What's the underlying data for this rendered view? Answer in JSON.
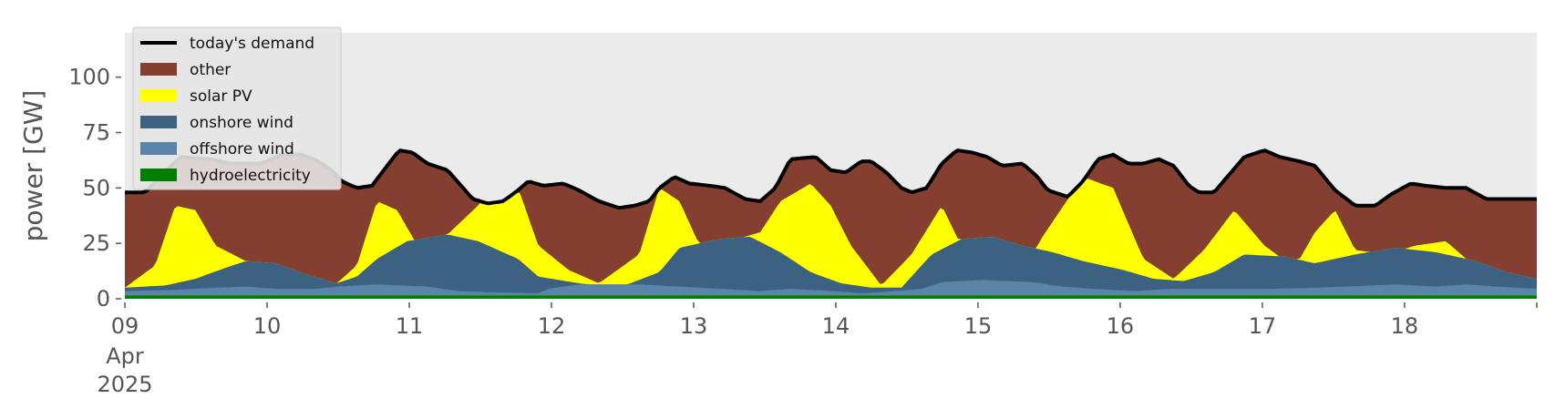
{
  "chart_data": {
    "type": "area",
    "title": "",
    "ylabel": "power [GW]",
    "xlabel": "",
    "ylim": [
      0,
      120
    ],
    "xlim": [
      "2025-04-09T00:00",
      "2025-04-18T23:00"
    ],
    "y_ticks": [
      0,
      25,
      50,
      75,
      100
    ],
    "x_ticks": [
      {
        "label": "09",
        "sub": [
          "Apr",
          "2025"
        ]
      },
      {
        "label": "10"
      },
      {
        "label": "11"
      },
      {
        "label": "12"
      },
      {
        "label": "13"
      },
      {
        "label": "14"
      },
      {
        "label": "15"
      },
      {
        "label": "16"
      },
      {
        "label": "17"
      },
      {
        "label": "18"
      }
    ],
    "x_unit": "days",
    "legend_position": "top-left",
    "grid": false,
    "background": "#ebebeb",
    "demand": {
      "name": "today's demand",
      "color": "#000000",
      "points": [
        [
          0.0,
          48
        ],
        [
          0.2,
          48
        ],
        [
          0.55,
          64
        ],
        [
          0.85,
          63
        ],
        [
          1.05,
          61
        ],
        [
          1.35,
          61
        ],
        [
          1.55,
          65
        ],
        [
          1.75,
          65
        ],
        [
          1.88,
          63
        ],
        [
          2.05,
          58
        ],
        [
          2.15,
          53
        ],
        [
          2.3,
          50
        ],
        [
          2.45,
          51
        ],
        [
          2.6,
          60
        ],
        [
          2.72,
          67
        ],
        [
          2.85,
          66
        ],
        [
          3.0,
          61
        ],
        [
          3.2,
          58
        ],
        [
          3.45,
          45
        ],
        [
          3.6,
          43
        ],
        [
          3.75,
          44
        ],
        [
          3.9,
          49
        ],
        [
          4.0,
          53
        ],
        [
          4.15,
          51
        ],
        [
          4.35,
          52
        ],
        [
          4.5,
          49
        ],
        [
          4.7,
          44
        ],
        [
          4.9,
          41
        ],
        [
          5.05,
          42
        ],
        [
          5.2,
          44
        ],
        [
          5.3,
          50
        ],
        [
          5.45,
          55
        ],
        [
          5.6,
          52
        ],
        [
          5.8,
          51
        ],
        [
          5.95,
          50
        ],
        [
          6.15,
          45
        ],
        [
          6.3,
          44
        ],
        [
          6.45,
          50
        ],
        [
          6.6,
          63
        ],
        [
          6.85,
          64
        ],
        [
          7.0,
          58
        ],
        [
          7.15,
          57
        ],
        [
          7.3,
          62
        ],
        [
          7.4,
          62
        ],
        [
          7.55,
          57
        ],
        [
          7.7,
          50
        ],
        [
          7.8,
          48
        ],
        [
          7.95,
          50
        ],
        [
          8.1,
          61
        ],
        [
          8.25,
          67
        ],
        [
          8.4,
          66
        ],
        [
          8.55,
          64
        ],
        [
          8.7,
          60
        ],
        [
          8.9,
          61
        ],
        [
          9.05,
          55
        ],
        [
          9.15,
          49
        ],
        [
          9.35,
          46
        ],
        [
          9.5,
          53
        ],
        [
          9.65,
          63
        ],
        [
          9.8,
          65
        ],
        [
          9.95,
          61
        ],
        [
          10.1,
          61
        ],
        [
          10.25,
          63
        ],
        [
          10.4,
          60
        ],
        [
          10.55,
          51
        ],
        [
          10.65,
          48
        ],
        [
          10.8,
          48
        ],
        [
          10.95,
          56
        ],
        [
          11.1,
          64
        ],
        [
          11.3,
          67
        ],
        [
          11.45,
          64
        ],
        [
          11.65,
          62
        ],
        [
          11.8,
          60
        ],
        [
          12.0,
          49
        ],
        [
          12.2,
          42
        ],
        [
          12.4,
          42
        ],
        [
          12.55,
          47
        ],
        [
          12.75,
          52
        ],
        [
          12.9,
          51
        ],
        [
          13.1,
          50
        ],
        [
          13.3,
          50
        ],
        [
          13.5,
          45
        ],
        [
          14.0,
          45
        ]
      ]
    },
    "series": [
      {
        "name": "hydroelectricity",
        "color": "#008000",
        "points": [
          [
            0,
            1.5
          ],
          [
            14,
            1.5
          ]
        ]
      },
      {
        "name": "offshore wind",
        "color": "#5b84a8",
        "points": [
          [
            0,
            2
          ],
          [
            0.5,
            2.5
          ],
          [
            0.9,
            3.5
          ],
          [
            1.2,
            4
          ],
          [
            1.5,
            3
          ],
          [
            1.9,
            3
          ],
          [
            2.1,
            4
          ],
          [
            2.5,
            5
          ],
          [
            3.0,
            4
          ],
          [
            3.3,
            2
          ],
          [
            3.6,
            1.5
          ],
          [
            4.1,
            1
          ],
          [
            4.2,
            3
          ],
          [
            4.5,
            5
          ],
          [
            5.1,
            5
          ],
          [
            5.5,
            4
          ],
          [
            5.9,
            3
          ],
          [
            6.3,
            2
          ],
          [
            6.6,
            3
          ],
          [
            7.0,
            2
          ],
          [
            7.3,
            1
          ],
          [
            7.5,
            1.5
          ],
          [
            7.9,
            3
          ],
          [
            8.1,
            6
          ],
          [
            8.5,
            7
          ],
          [
            9.0,
            6
          ],
          [
            9.3,
            4
          ],
          [
            9.6,
            3
          ],
          [
            10.0,
            2
          ],
          [
            10.4,
            3
          ],
          [
            11.0,
            3
          ],
          [
            11.4,
            3
          ],
          [
            11.8,
            3.5
          ],
          [
            12.1,
            4
          ],
          [
            12.6,
            5
          ],
          [
            13.0,
            4
          ],
          [
            13.3,
            5
          ],
          [
            13.6,
            4
          ],
          [
            14,
            3
          ]
        ]
      },
      {
        "name": "onshore wind",
        "color": "#3d6180",
        "points": [
          [
            0,
            5
          ],
          [
            0.4,
            6
          ],
          [
            0.7,
            9
          ],
          [
            1.0,
            14
          ],
          [
            1.2,
            17
          ],
          [
            1.5,
            16
          ],
          [
            1.8,
            11
          ],
          [
            2.1,
            7
          ],
          [
            2.3,
            10
          ],
          [
            2.5,
            18
          ],
          [
            2.8,
            26
          ],
          [
            3.2,
            29
          ],
          [
            3.5,
            26
          ],
          [
            3.9,
            18
          ],
          [
            4.1,
            10
          ],
          [
            4.5,
            7
          ],
          [
            4.9,
            5
          ],
          [
            5.3,
            12
          ],
          [
            5.5,
            23
          ],
          [
            5.9,
            27
          ],
          [
            6.2,
            28
          ],
          [
            6.5,
            21
          ],
          [
            6.8,
            12
          ],
          [
            7.1,
            7
          ],
          [
            7.4,
            5
          ],
          [
            7.7,
            5
          ],
          [
            8.0,
            20
          ],
          [
            8.3,
            27
          ],
          [
            8.6,
            28
          ],
          [
            8.9,
            24
          ],
          [
            9.2,
            21
          ],
          [
            9.5,
            17
          ],
          [
            9.9,
            13
          ],
          [
            10.2,
            9
          ],
          [
            10.5,
            8
          ],
          [
            10.8,
            12
          ],
          [
            11.1,
            20
          ],
          [
            11.5,
            19
          ],
          [
            11.8,
            16
          ],
          [
            12.2,
            20
          ],
          [
            12.6,
            23
          ],
          [
            13.0,
            21
          ],
          [
            13.4,
            17
          ],
          [
            13.7,
            12
          ],
          [
            14,
            9
          ]
        ]
      },
      {
        "name": "solar PV",
        "color": "#ffff00",
        "points": [
          [
            0,
            5
          ],
          [
            0.3,
            15
          ],
          [
            0.5,
            42
          ],
          [
            0.7,
            40
          ],
          [
            0.9,
            24
          ],
          [
            1.2,
            17
          ],
          [
            1.5,
            16
          ],
          [
            1.8,
            11
          ],
          [
            2.1,
            7
          ],
          [
            2.3,
            15
          ],
          [
            2.5,
            44
          ],
          [
            2.7,
            40
          ],
          [
            2.9,
            24
          ],
          [
            3.2,
            29
          ],
          [
            3.5,
            42
          ],
          [
            3.7,
            60
          ],
          [
            3.9,
            50
          ],
          [
            4.1,
            24
          ],
          [
            4.4,
            13
          ],
          [
            4.7,
            7
          ],
          [
            5.1,
            20
          ],
          [
            5.3,
            50
          ],
          [
            5.5,
            44
          ],
          [
            5.8,
            14
          ],
          [
            6.0,
            26
          ],
          [
            6.3,
            30
          ],
          [
            6.5,
            44
          ],
          [
            6.8,
            52
          ],
          [
            7.0,
            42
          ],
          [
            7.2,
            24
          ],
          [
            7.5,
            6
          ],
          [
            7.8,
            20
          ],
          [
            8.1,
            42
          ],
          [
            8.4,
            14
          ],
          [
            8.7,
            6
          ],
          [
            8.9,
            12
          ],
          [
            9.1,
            28
          ],
          [
            9.5,
            55
          ],
          [
            9.8,
            50
          ],
          [
            10.1,
            18
          ],
          [
            10.4,
            9
          ],
          [
            10.7,
            22
          ],
          [
            11.0,
            40
          ],
          [
            11.3,
            24
          ],
          [
            11.6,
            14
          ],
          [
            11.8,
            30
          ],
          [
            12.0,
            40
          ],
          [
            12.2,
            22
          ],
          [
            12.5,
            20
          ],
          [
            12.8,
            24
          ],
          [
            13.1,
            26
          ],
          [
            13.3,
            18
          ],
          [
            13.6,
            10
          ],
          [
            14,
            9
          ]
        ]
      },
      {
        "name": "other",
        "color": "#843f30",
        "points": [
          [
            0,
            48
          ],
          [
            14,
            45
          ]
        ]
      }
    ]
  }
}
